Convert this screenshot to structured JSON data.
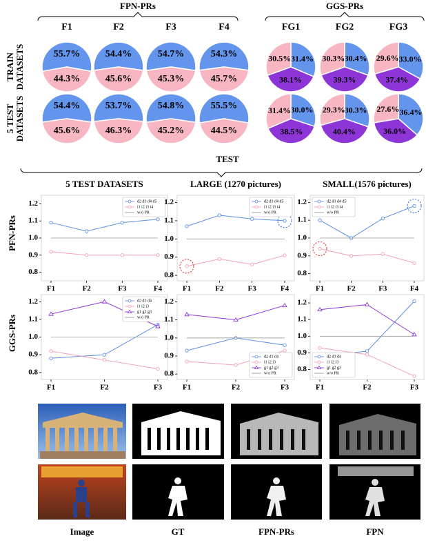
{
  "pie_rows": [
    "TRAIN DATASETS",
    "5 TEST DATASETS"
  ],
  "test_title": "TEST",
  "line_rows": [
    "PFN-PRs",
    "GGS-PRs"
  ],
  "panels": {
    "labels": [
      "Image",
      "GT",
      "FPN-PRs",
      "FPN"
    ]
  },
  "chart_data": [
    {
      "type": "pie-grid",
      "groups": [
        {
          "title": "FPN-PRs",
          "columns": [
            "F1",
            "F2",
            "F3",
            "F4"
          ],
          "colors": [
            "#6495ed",
            "#f7b6c2"
          ]
        },
        {
          "title": "GGS-PRs",
          "columns": [
            "FG1",
            "FG2",
            "FG3"
          ],
          "colors": [
            "#6495ed",
            "#8e35d8",
            "#f7b6c2"
          ]
        }
      ],
      "values": [
        [
          [
            [
              55.7,
              44.3
            ],
            [
              54.4,
              45.6
            ],
            [
              54.7,
              45.3
            ],
            [
              54.3,
              45.7
            ]
          ],
          [
            [
              31.4,
              38.1,
              30.5
            ],
            [
              30.4,
              39.3,
              30.3
            ],
            [
              33.0,
              37.4,
              29.6
            ]
          ]
        ],
        [
          [
            [
              54.4,
              45.6
            ],
            [
              53.7,
              46.3
            ],
            [
              54.8,
              45.2
            ],
            [
              55.5,
              44.5
            ]
          ],
          [
            [
              30.0,
              38.5,
              31.4
            ],
            [
              30.3,
              40.4,
              29.3
            ],
            [
              36.4,
              36.0,
              27.6
            ]
          ]
        ]
      ],
      "value_labels": [
        [
          [
            [
              "55.7%",
              "44.3%"
            ],
            [
              "54.4%",
              "45.6%"
            ],
            [
              "54.7%",
              "45.3%"
            ],
            [
              "54.3%",
              "45.7%"
            ]
          ],
          [
            [
              "31.4%",
              "38.1%",
              "30.5%"
            ],
            [
              "30.4%",
              "39.3%",
              "30.3%"
            ],
            [
              "33.0%",
              "37.4%",
              "29.6%"
            ]
          ]
        ],
        [
          [
            [
              "54.4%",
              "45.6%"
            ],
            [
              "53.7%",
              "46.3%"
            ],
            [
              "54.8%",
              "45.2%"
            ],
            [
              "55.5%",
              "44.5%"
            ]
          ],
          [
            [
              "30.0%",
              "38.5%",
              "31.4%"
            ],
            [
              "30.3%",
              "40.4%",
              "29.3%"
            ],
            [
              "36.4%",
              "36.0%",
              "27.6%"
            ]
          ]
        ]
      ]
    },
    {
      "type": "line",
      "title": "5 TEST DATASETS",
      "categories": [
        "F1",
        "F2",
        "F3",
        "F4"
      ],
      "series": [
        {
          "name": "d2 d3 d4 d5",
          "color": "#5b8ee6",
          "marker": "circle",
          "values": [
            1.09,
            1.04,
            1.09,
            1.11
          ]
        },
        {
          "name": "i1 i2 i3 i4",
          "color": "#f4a0b4",
          "marker": "circle",
          "values": [
            0.92,
            0.9,
            0.9,
            0.9
          ]
        },
        {
          "name": "w/o PR",
          "color": "#999999",
          "marker": "none",
          "values": [
            1,
            1,
            1,
            1
          ]
        }
      ],
      "ylim": [
        0.75,
        1.25
      ],
      "yticks": [
        0.8,
        0.9,
        {
          "value": 1,
          "label": "1.0"
        },
        1.1,
        1.2
      ],
      "legend": "upper right"
    },
    {
      "type": "line",
      "title": "LARGE (1270 pictures)",
      "categories": [
        "F1",
        "F2",
        "F3",
        "F4"
      ],
      "series": [
        {
          "name": "d2 d3 d4 d5",
          "color": "#5b8ee6",
          "marker": "circle",
          "values": [
            1.07,
            1.13,
            1.11,
            1.1
          ]
        },
        {
          "name": "i1 i2 i3 i4",
          "color": "#f4a0b4",
          "marker": "circle",
          "values": [
            0.85,
            0.89,
            0.86,
            0.91
          ]
        },
        {
          "name": "w/o PR",
          "color": "#999999",
          "marker": "none",
          "values": [
            1,
            1,
            1,
            1
          ]
        }
      ],
      "ylim": [
        0.77,
        1.24
      ],
      "yticks": [
        0.8,
        0.9,
        {
          "value": 1,
          "label": "1.0"
        },
        1.1,
        1.2
      ],
      "legend": "upper right",
      "highlights": [
        {
          "series": 1,
          "index": 0,
          "color": "#e02020"
        },
        {
          "series": 0,
          "index": 3,
          "color": "#2060e0"
        }
      ]
    },
    {
      "type": "line",
      "title": "SMALL(1576 pictures)",
      "categories": [
        "F1",
        "F2",
        "F3",
        "F4"
      ],
      "series": [
        {
          "name": "d2 d3 d4 d5",
          "color": "#5b8ee6",
          "marker": "circle",
          "values": [
            1.1,
            1.0,
            1.11,
            1.18
          ]
        },
        {
          "name": "i1 i2 i3 i4",
          "color": "#f4a0b4",
          "marker": "circle",
          "values": [
            0.94,
            0.9,
            0.91,
            0.86
          ]
        },
        {
          "name": "w/o PR",
          "color": "#999999",
          "marker": "none",
          "values": [
            1,
            1,
            1,
            1
          ]
        }
      ],
      "ylim": [
        0.76,
        1.24
      ],
      "yticks": [
        0.8,
        0.9,
        {
          "value": 1,
          "label": "1.0"
        },
        1.1,
        1.2
      ],
      "legend": "upper left",
      "highlights": [
        {
          "series": 1,
          "index": 0,
          "color": "#e02020"
        },
        {
          "series": 0,
          "index": 3,
          "color": "#2060e0"
        }
      ]
    },
    {
      "type": "line",
      "categories": [
        "F1",
        "F2",
        "F3"
      ],
      "series": [
        {
          "name": "d2 d3 d4",
          "color": "#5b8ee6",
          "marker": "circle",
          "values": [
            0.88,
            0.9,
            1.07
          ]
        },
        {
          "name": "i1 i2 i3",
          "color": "#f4a0b4",
          "marker": "circle",
          "values": [
            0.92,
            0.87,
            0.82
          ]
        },
        {
          "name": "g1 g2 g3",
          "color": "#8e35d8",
          "marker": "triangle",
          "values": [
            1.13,
            1.2,
            1.06
          ]
        },
        {
          "name": "w/o PR",
          "color": "#999999",
          "marker": "none",
          "values": [
            1,
            1,
            1
          ]
        }
      ],
      "ylim": [
        0.76,
        1.24
      ],
      "yticks": [
        0.8,
        0.9,
        {
          "value": 1,
          "label": "1.0"
        },
        1.1,
        1.2
      ],
      "legend": "upper right"
    },
    {
      "type": "line",
      "categories": [
        "F1",
        "F2",
        "F3"
      ],
      "series": [
        {
          "name": "d2 d3 d4",
          "color": "#5b8ee6",
          "marker": "circle",
          "values": [
            0.93,
            1.0,
            0.96
          ]
        },
        {
          "name": "i1 i2 i3",
          "color": "#f4a0b4",
          "marker": "circle",
          "values": [
            0.87,
            0.85,
            0.93
          ]
        },
        {
          "name": "g1 g2 g3",
          "color": "#8e35d8",
          "marker": "triangle",
          "values": [
            1.13,
            1.1,
            1.18
          ]
        },
        {
          "name": "w/o PR",
          "color": "#999999",
          "marker": "none",
          "values": [
            1,
            1,
            1
          ]
        }
      ],
      "ylim": [
        0.77,
        1.24
      ],
      "yticks": [
        0.8,
        0.9,
        {
          "value": 1,
          "label": "1.0"
        },
        1.1,
        1.2
      ],
      "legend": "lower right"
    },
    {
      "type": "line",
      "categories": [
        "F1",
        "F2",
        "F3"
      ],
      "series": [
        {
          "name": "d2 d3 d4",
          "color": "#5b8ee6",
          "marker": "circle",
          "values": [
            0.88,
            0.91,
            1.21
          ]
        },
        {
          "name": "i1 i2 i3",
          "color": "#f4a0b4",
          "marker": "circle",
          "values": [
            0.93,
            0.89,
            0.76
          ]
        },
        {
          "name": "g1 g2 g3",
          "color": "#8e35d8",
          "marker": "triangle",
          "values": [
            1.16,
            1.19,
            1.01
          ]
        },
        {
          "name": "w/o PR",
          "color": "#999999",
          "marker": "none",
          "values": [
            1,
            1,
            1
          ]
        }
      ],
      "ylim": [
        0.74,
        1.25
      ],
      "yticks": [
        0.8,
        0.9,
        {
          "value": 1,
          "label": "1.0"
        },
        1.1,
        1.2
      ],
      "legend": "lower left"
    }
  ]
}
